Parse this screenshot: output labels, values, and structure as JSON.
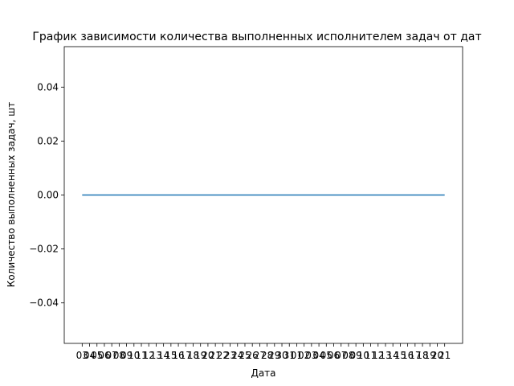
{
  "chart_data": {
    "type": "line",
    "title": "График зависимости количества выполненных исполнителем задач от дат",
    "xlabel": "Дата",
    "ylabel": "Количество выполненных задач, шт",
    "ylim": [
      -0.055,
      0.055
    ],
    "yticks": [
      "0.04",
      "0.02",
      "0.00",
      "−0.02",
      "−0.04"
    ],
    "ytick_values": [
      0.04,
      0.02,
      0.0,
      -0.02,
      -0.04
    ],
    "x_tick_count": 50,
    "x_tick_labels_rendered": [
      "03",
      "04",
      "05",
      "06",
      "07",
      "08",
      "09",
      "10",
      "11",
      "12",
      "13",
      "14",
      "15",
      "16",
      "17",
      "18",
      "19",
      "20",
      "21",
      "22",
      "23",
      "24",
      "25",
      "26",
      "27",
      "28",
      "29",
      "30",
      "31",
      "01",
      "02",
      "03",
      "04",
      "05",
      "06",
      "07",
      "08",
      "09",
      "10",
      "11",
      "12",
      "13",
      "14",
      "15",
      "16",
      "17",
      "18",
      "19",
      "20",
      "21"
    ],
    "series": [
      {
        "values": [
          0,
          0,
          0,
          0,
          0,
          0,
          0,
          0,
          0,
          0,
          0,
          0,
          0,
          0,
          0,
          0,
          0,
          0,
          0,
          0,
          0,
          0,
          0,
          0,
          0,
          0,
          0,
          0,
          0,
          0,
          0,
          0,
          0,
          0,
          0,
          0,
          0,
          0,
          0,
          0,
          0,
          0,
          0,
          0,
          0,
          0,
          0,
          0,
          0,
          0
        ],
        "color": "#1f77b4"
      }
    ],
    "grid": false,
    "legend": "none"
  }
}
